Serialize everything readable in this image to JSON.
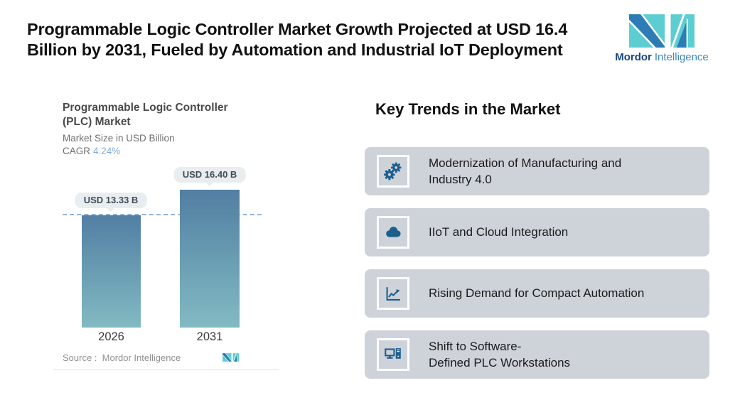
{
  "title": {
    "line1": "Programmable Logic Controller Market Growth Projected at USD 16.4",
    "line2": "Billion by 2031, Fueled by Automation and Industrial IoT Deployment"
  },
  "brand": {
    "name_bold": "Mordor",
    "name_light": "Intelligence",
    "teal": "#5ecdd2",
    "blue": "#2e7cb5",
    "navy": "#17497c"
  },
  "chart": {
    "title_line1": "Programmable Logic Controller",
    "title_line2": "(PLC) Market",
    "subtitle": "Market Size in USD Billion",
    "cagr_label": "CAGR",
    "cagr_value": "4.24%",
    "source_label": "Source :  Mordor Intelligence",
    "colors": {
      "bar_top": "#527ea3",
      "bar_bottom": "#82bac3",
      "dashed_line": "#8fb3d6",
      "badge_bg": "#e9edf0",
      "cagr_value_color": "#84aed8"
    }
  },
  "chart_data": {
    "type": "bar",
    "categories": [
      "2026",
      "2031"
    ],
    "values": [
      13.33,
      16.4
    ],
    "value_labels": [
      "USD 13.33 B",
      "USD 16.40 B"
    ],
    "reference_line": 13.33,
    "title": "Programmable Logic Controller (PLC) Market",
    "xlabel": "",
    "ylabel": "Market Size in USD Billion",
    "ylim": [
      0,
      19.5
    ],
    "grid": false,
    "legend": "none"
  },
  "trends": {
    "heading": "Key Trends in the Market",
    "card_bg": "#ced2d9",
    "icon_color": "#1c5f8d",
    "items": [
      {
        "icon": "gears-icon",
        "label": "Modernization of Manufacturing and\nIndustry 4.0"
      },
      {
        "icon": "cloud-icon",
        "label": "IIoT and Cloud Integration"
      },
      {
        "icon": "line-chart-icon",
        "label": "Rising Demand for Compact Automation"
      },
      {
        "icon": "computer-icon",
        "label": "Shift to Software-\nDefined PLC Workstations"
      }
    ]
  }
}
